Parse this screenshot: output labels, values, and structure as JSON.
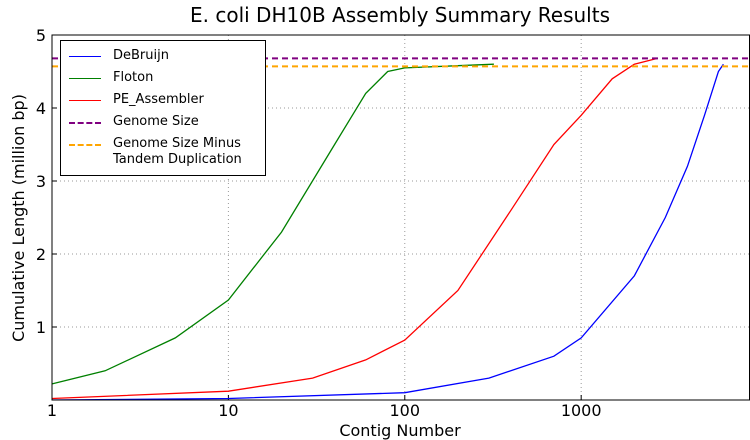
{
  "chart_data": {
    "type": "line",
    "title": "E. coli DH10B Assembly Summary Results",
    "xlabel": "Contig Number",
    "ylabel": "Cumulative Length (million bp)",
    "xscale": "log",
    "xlim": [
      1,
      9000
    ],
    "xticks": [
      1,
      10,
      100,
      1000
    ],
    "ylim": [
      0,
      5
    ],
    "yticks": [
      1,
      2,
      3,
      4,
      5
    ],
    "grid": true,
    "legend": "upper left",
    "series": [
      {
        "name": "DeBruijn",
        "color": "#0000ff",
        "x": [
          1,
          10,
          100,
          300,
          700,
          1000,
          2000,
          3000,
          4000,
          5000,
          6000,
          6400
        ],
        "values": [
          0,
          0.02,
          0.1,
          0.3,
          0.6,
          0.85,
          1.7,
          2.5,
          3.2,
          3.9,
          4.5,
          4.6
        ]
      },
      {
        "name": "Floton",
        "color": "#008000",
        "x": [
          1,
          2,
          5,
          10,
          20,
          40,
          60,
          80,
          100,
          200,
          320
        ],
        "values": [
          0.22,
          0.4,
          0.85,
          1.37,
          2.3,
          3.5,
          4.2,
          4.5,
          4.55,
          4.58,
          4.6
        ]
      },
      {
        "name": "PE_Assembler",
        "color": "#ff0000",
        "x": [
          1,
          10,
          30,
          60,
          100,
          200,
          400,
          700,
          1000,
          1500,
          2000,
          2700
        ],
        "values": [
          0.02,
          0.12,
          0.3,
          0.55,
          0.82,
          1.5,
          2.6,
          3.5,
          3.9,
          4.4,
          4.6,
          4.68
        ]
      }
    ],
    "hlines": [
      {
        "name": "Genome Size",
        "color": "#800080",
        "value": 4.68
      },
      {
        "name": "Genome Size Minus Tandem Duplication",
        "color": "#ffa500",
        "value": 4.57
      }
    ]
  }
}
